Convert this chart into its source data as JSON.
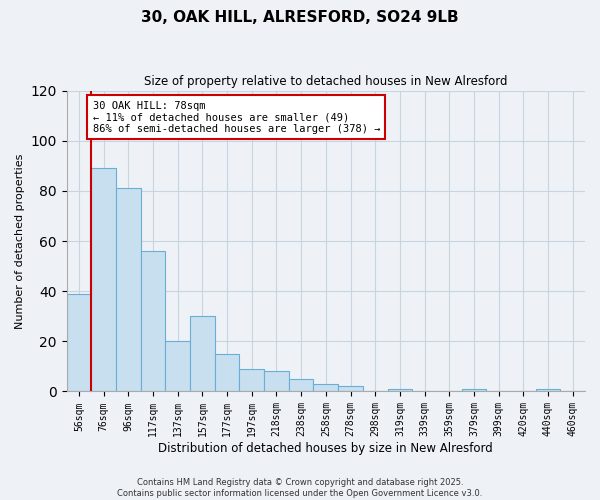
{
  "title": "30, OAK HILL, ALRESFORD, SO24 9LB",
  "subtitle": "Size of property relative to detached houses in New Alresford",
  "xlabel": "Distribution of detached houses by size in New Alresford",
  "ylabel": "Number of detached properties",
  "bar_labels": [
    "56sqm",
    "76sqm",
    "96sqm",
    "117sqm",
    "137sqm",
    "157sqm",
    "177sqm",
    "197sqm",
    "218sqm",
    "238sqm",
    "258sqm",
    "278sqm",
    "298sqm",
    "319sqm",
    "339sqm",
    "359sqm",
    "379sqm",
    "399sqm",
    "420sqm",
    "440sqm",
    "460sqm"
  ],
  "bar_values": [
    39,
    89,
    81,
    56,
    20,
    30,
    15,
    9,
    8,
    5,
    3,
    2,
    0,
    1,
    0,
    0,
    1,
    0,
    0,
    1,
    0
  ],
  "bar_color": "#c8dff0",
  "bar_edge_color": "#6aaed6",
  "reference_line_index": 1,
  "reference_line_color": "#cc0000",
  "ylim": [
    0,
    120
  ],
  "yticks": [
    0,
    20,
    40,
    60,
    80,
    100,
    120
  ],
  "annotation_title": "30 OAK HILL: 78sqm",
  "annotation_line1": "← 11% of detached houses are smaller (49)",
  "annotation_line2": "86% of semi-detached houses are larger (378) →",
  "footer_line1": "Contains HM Land Registry data © Crown copyright and database right 2025.",
  "footer_line2": "Contains public sector information licensed under the Open Government Licence v3.0.",
  "background_color": "#eef2f7",
  "plot_bg_color": "#eef2f7",
  "grid_color": "#c8d4e0"
}
